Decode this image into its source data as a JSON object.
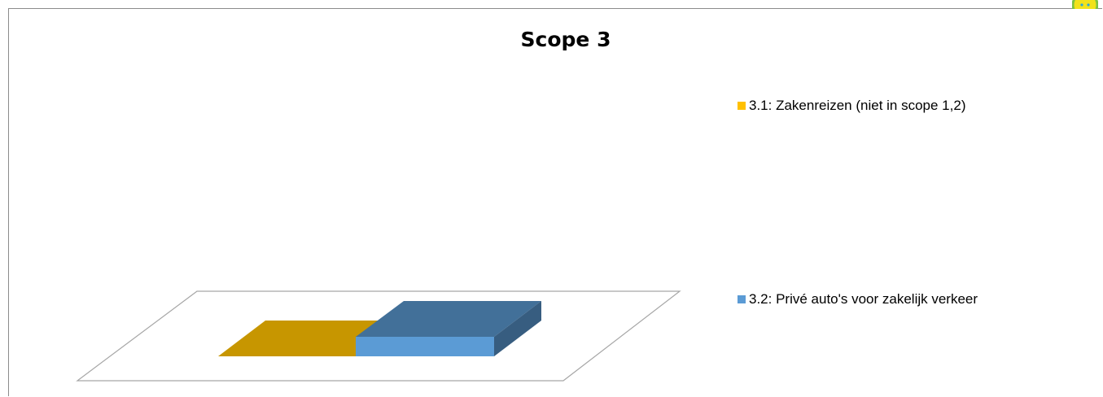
{
  "chart_data": {
    "type": "bar",
    "title": "Scope 3",
    "series": [
      {
        "name": "3.1: Zakenreizen (niet in scope 1,2)",
        "color": "#FFC000"
      },
      {
        "name": "3.2: Privé auto's voor zakelijk verkeer",
        "color": "#5B9BD5"
      }
    ],
    "legend_position": "right",
    "grid": false,
    "three_d": true
  }
}
